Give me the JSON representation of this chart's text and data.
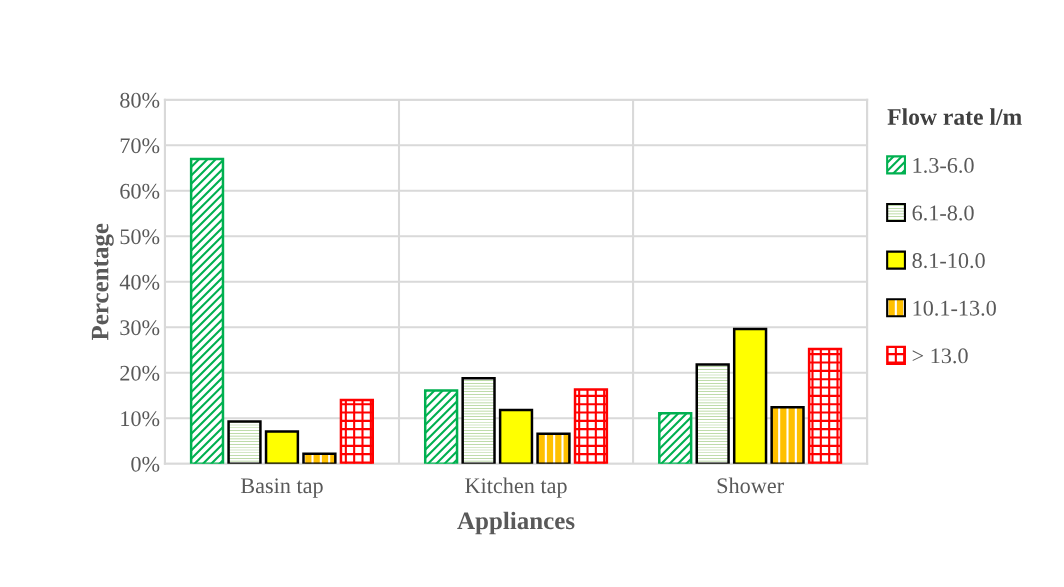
{
  "chart_data": {
    "type": "bar",
    "xlabel": "Appliances",
    "ylabel": "Percentage",
    "legend_title": "Flow rate l/m",
    "categories": [
      "Basin tap",
      "Kitchen tap",
      "Shower"
    ],
    "series": [
      {
        "name": "1.3-6.0",
        "color": "#00b050",
        "values": [
          67,
          16.1,
          11.1
        ]
      },
      {
        "name": "6.1-8.0",
        "color": "#a9d18e",
        "values": [
          9.3,
          18.8,
          21.8
        ]
      },
      {
        "name": "8.1-10.0",
        "color": "#ffff00",
        "values": [
          7.1,
          11.8,
          29.6
        ]
      },
      {
        "name": "10.1-13.0",
        "color": "#ffc000",
        "values": [
          2.2,
          6.6,
          12.4
        ]
      },
      {
        "name": "> 13.0",
        "color": "#ff0000",
        "values": [
          14.0,
          16.3,
          25.2
        ]
      }
    ],
    "ylim": [
      0,
      80
    ],
    "yticks": [
      {
        "value": 0,
        "label": "0%"
      },
      {
        "value": 10,
        "label": "10%"
      },
      {
        "value": 20,
        "label": "20%"
      },
      {
        "value": 30,
        "label": "30%"
      },
      {
        "value": 40,
        "label": "40%"
      },
      {
        "value": 50,
        "label": "50%"
      },
      {
        "value": 60,
        "label": "60%"
      },
      {
        "value": 70,
        "label": "70%"
      },
      {
        "value": 80,
        "label": "80%"
      }
    ],
    "grid": true,
    "legend": "right"
  }
}
